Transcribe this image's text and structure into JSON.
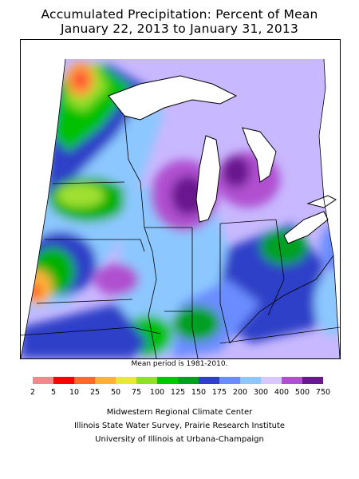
{
  "title": {
    "line1": "Accumulated Precipitation: Percent of Mean",
    "line2": "January 22, 2013 to January 31, 2013"
  },
  "map": {
    "region": "Midwest US",
    "base_color": "#bfb0ff"
  },
  "note": "Mean period is 1981-2010.",
  "legend": {
    "labels": [
      "2",
      "5",
      "10",
      "25",
      "50",
      "75",
      "100",
      "125",
      "150",
      "175",
      "200",
      "300",
      "400",
      "500",
      "750"
    ],
    "colors": [
      "#f08a8a",
      "#ff0000",
      "#ff6a2a",
      "#ffb03a",
      "#e8e83a",
      "#8fe02a",
      "#00c800",
      "#00a020",
      "#2e3fc8",
      "#6a8cff",
      "#8cc8ff",
      "#d8c8ff",
      "#b050d0",
      "#6a1890"
    ]
  },
  "credits": {
    "line1": "Midwestern Regional Climate Center",
    "line2": "Illinois State Water Survey, Prairie Research Institute",
    "line3": "University of Illinois at Urbana-Champaign"
  }
}
